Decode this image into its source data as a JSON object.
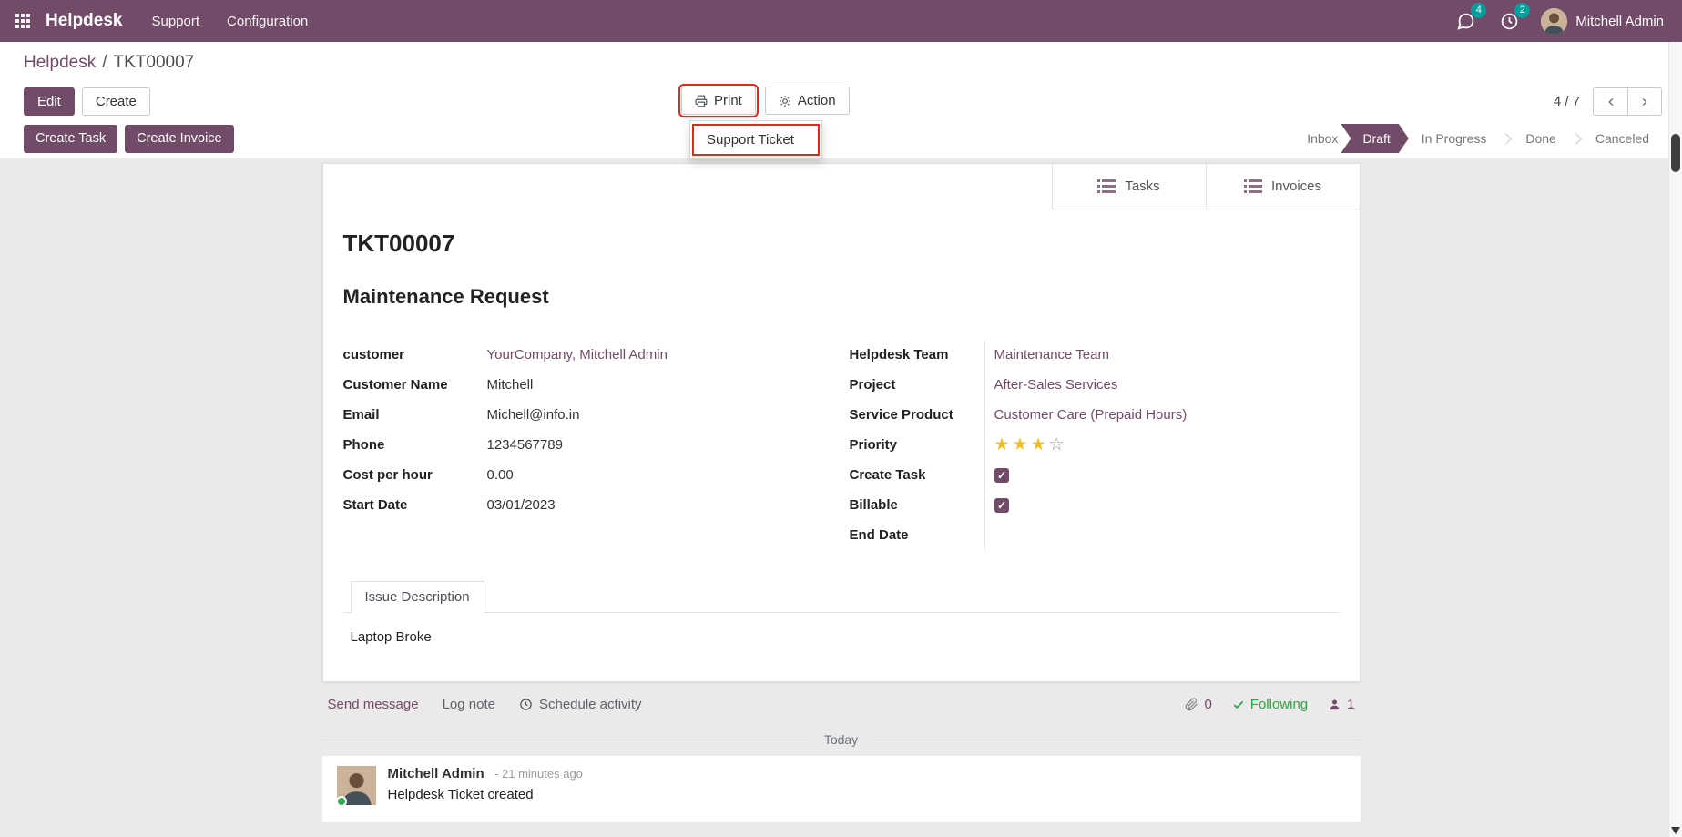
{
  "colors": {
    "brand": "#714B67",
    "link": "#714B67",
    "badge_teal": "#00A09D",
    "annotation_red": "#e0281c",
    "star_gold": "#f0c028",
    "following_green": "#28a745",
    "presence_green": "#30a854"
  },
  "icons": {
    "apps": "grid-3x3",
    "messages": "chat-bubble",
    "activities": "clock",
    "print": "printer",
    "action": "gear",
    "pager_prev": "chevron-left",
    "pager_next": "chevron-right",
    "stat_button": "list",
    "schedule": "clock",
    "attachments": "paperclip",
    "following": "check",
    "followers": "person",
    "star_filled": "★",
    "star_empty": "☆",
    "checkbox_check": "✓"
  },
  "navbar": {
    "brand": "Helpdesk",
    "menus": [
      "Support",
      "Configuration"
    ],
    "messages_badge": "4",
    "activities_badge": "2",
    "user_name": "Mitchell Admin"
  },
  "breadcrumb": {
    "parent": "Helpdesk",
    "separator": "/",
    "current": "TKT00007"
  },
  "control_panel": {
    "edit": "Edit",
    "create": "Create",
    "print": "Print",
    "action": "Action",
    "print_menu_item": "Support Ticket",
    "pager": "4 / 7"
  },
  "quick_actions": {
    "create_task": "Create Task",
    "create_invoice": "Create Invoice"
  },
  "statusbar": {
    "steps": [
      {
        "label": "Inbox",
        "active": false
      },
      {
        "label": "Draft",
        "active": true
      },
      {
        "label": "In Progress",
        "active": false
      },
      {
        "label": "Done",
        "active": false
      },
      {
        "label": "Canceled",
        "active": false
      }
    ]
  },
  "sheet": {
    "button_box": {
      "tasks": "Tasks",
      "invoices": "Invoices"
    },
    "ticket_ref": "TKT00007",
    "ticket_title": "Maintenance Request",
    "left": {
      "customer": {
        "label": "customer",
        "value": "YourCompany, Mitchell Admin"
      },
      "customer_name": {
        "label": "Customer Name",
        "value": "Mitchell"
      },
      "email": {
        "label": "Email",
        "value": "Michell@info.in"
      },
      "phone": {
        "label": "Phone",
        "value": "1234567789"
      },
      "cost_per_hour": {
        "label": "Cost per hour",
        "value": "0.00"
      },
      "start_date": {
        "label": "Start Date",
        "value": "03/01/2023"
      }
    },
    "right": {
      "helpdesk_team": {
        "label": "Helpdesk Team",
        "value": "Maintenance Team"
      },
      "project": {
        "label": "Project",
        "value": "After-Sales Services"
      },
      "service_product": {
        "label": "Service Product",
        "value": "Customer Care (Prepaid Hours)"
      },
      "priority": {
        "label": "Priority",
        "filled": 3,
        "total": 4
      },
      "create_task": {
        "label": "Create Task",
        "checked": true
      },
      "billable": {
        "label": "Billable",
        "checked": true
      },
      "end_date": {
        "label": "End Date",
        "value": ""
      }
    },
    "tab": "Issue Description",
    "description": "Laptop Broke"
  },
  "chatter": {
    "send_message": "Send message",
    "log_note": "Log note",
    "schedule_activity": "Schedule activity",
    "attachments_count": "0",
    "following": "Following",
    "followers_count": "1",
    "divider": "Today",
    "message": {
      "author": "Mitchell Admin",
      "time": "- 21 minutes ago",
      "body": "Helpdesk Ticket created"
    }
  }
}
